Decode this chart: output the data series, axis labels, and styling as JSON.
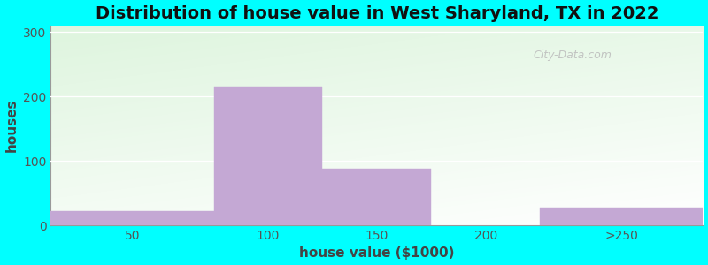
{
  "title": "Distribution of house value in West Sharyland, TX in 2022",
  "xlabel": "house value ($1000)",
  "ylabel": "houses",
  "bar_lefts": [
    0,
    75,
    125,
    175,
    225
  ],
  "bar_widths": [
    75,
    50,
    50,
    50,
    75
  ],
  "bar_heights": [
    22,
    215,
    88,
    0,
    28
  ],
  "bar_color": "#C4A8D4",
  "bar_edgecolor": "#C4A8D4",
  "xtick_labels": [
    "50",
    "100",
    "150",
    "200",
    ">250"
  ],
  "xtick_positions": [
    37.5,
    100,
    150,
    200,
    262.5
  ],
  "ytick_positions": [
    0,
    100,
    200,
    300
  ],
  "ylim": [
    0,
    310
  ],
  "xlim": [
    0,
    300
  ],
  "bg_outer": "#00FFFF",
  "bg_gradient_topleft": "#ddeedd",
  "bg_gradient_topright": "#f5faf5",
  "bg_gradient_bottomleft": "#ffffff",
  "bg_gradient_bottomright": "#ffffff",
  "title_fontsize": 14,
  "axis_label_fontsize": 11,
  "tick_fontsize": 10,
  "watermark_text": "City-Data.com",
  "watermark_color": "#bbbbbb"
}
